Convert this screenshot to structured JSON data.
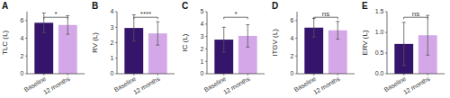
{
  "chart_data": [
    {
      "type": "bar",
      "title": "A",
      "y_label": "TLC (L)",
      "categories": [
        "Baseline",
        "12 months"
      ],
      "values": [
        5.75,
        5.5
      ],
      "errors": [
        1.1,
        1.05
      ],
      "colors": [
        "#35146b",
        "#d4a8e8"
      ],
      "ylim": [
        0,
        7
      ],
      "yticks": [
        0,
        2,
        4,
        6
      ],
      "annotations": [
        {
          "text": "*"
        }
      ],
      "grid": false
    },
    {
      "type": "bar",
      "title": "B",
      "y_label": "RV (L)",
      "categories": [
        "Baseline",
        "12 months"
      ],
      "values": [
        2.95,
        2.6
      ],
      "errors": [
        0.85,
        0.75
      ],
      "colors": [
        "#35146b",
        "#d4a8e8"
      ],
      "ylim": [
        0,
        4
      ],
      "yticks": [
        0,
        1,
        2,
        3,
        4
      ],
      "annotations": [
        {
          "text": "****"
        }
      ],
      "grid": false
    },
    {
      "type": "bar",
      "title": "C",
      "y_label": "IC (L)",
      "categories": [
        "Baseline",
        "12 months"
      ],
      "values": [
        2.75,
        3.05
      ],
      "errors": [
        1.0,
        0.9
      ],
      "colors": [
        "#35146b",
        "#d4a8e8"
      ],
      "ylim": [
        0,
        5
      ],
      "yticks": [
        0,
        1,
        2,
        3,
        4,
        5
      ],
      "annotations": [
        {
          "text": "*"
        }
      ],
      "grid": false
    },
    {
      "type": "bar",
      "title": "D",
      "y_label": "ITGV (L)",
      "categories": [
        "Baseline",
        "12 months"
      ],
      "values": [
        5.2,
        4.9
      ],
      "errors": [
        1.05,
        1.0
      ],
      "colors": [
        "#35146b",
        "#d4a8e8"
      ],
      "ylim": [
        0,
        7
      ],
      "yticks": [
        0,
        2,
        4,
        6
      ],
      "annotations": [
        {
          "text": "ns"
        }
      ],
      "grid": false
    },
    {
      "type": "bar",
      "title": "E",
      "y_label": "ERV (L)",
      "categories": [
        "Baseline",
        "12 months"
      ],
      "values": [
        0.72,
        0.93
      ],
      "errors": [
        0.52,
        0.48
      ],
      "colors": [
        "#35146b",
        "#d4a8e8"
      ],
      "ylim": [
        0.0,
        1.5
      ],
      "yticks": [
        {
          "value": 0,
          "label": "0.0"
        },
        0.5,
        {
          "value": 1,
          "label": "1.0"
        },
        1.5
      ],
      "annotations": [
        {
          "text": "ns"
        }
      ],
      "grid": false
    }
  ]
}
